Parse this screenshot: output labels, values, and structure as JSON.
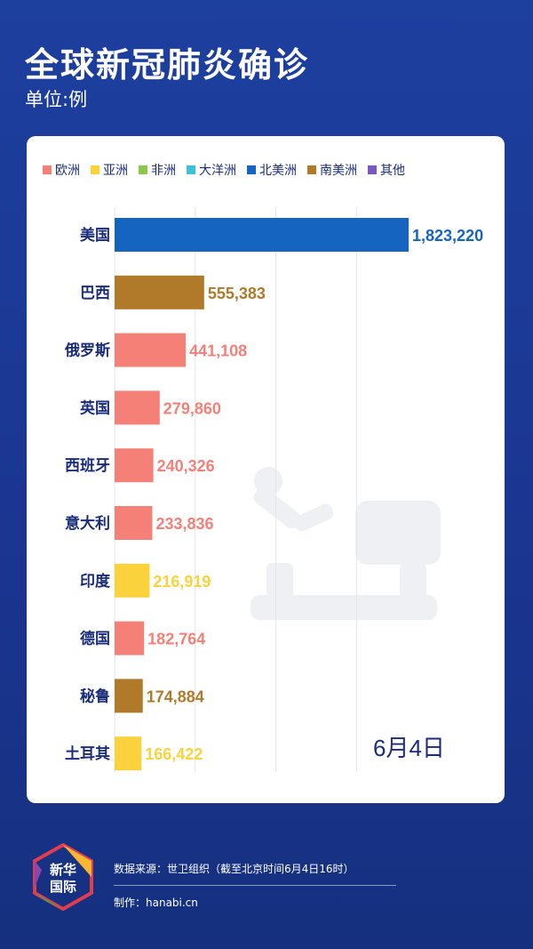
{
  "header": {
    "title": "全球新冠肺炎确诊",
    "unit": "单位:例"
  },
  "legend": [
    {
      "label": "欧洲",
      "color": "#f58078"
    },
    {
      "label": "亚洲",
      "color": "#f9d23c"
    },
    {
      "label": "非洲",
      "color": "#8cc64a"
    },
    {
      "label": "大洋洲",
      "color": "#3ec1d8"
    },
    {
      "label": "北美洲",
      "color": "#1565c0"
    },
    {
      "label": "南美洲",
      "color": "#b07a2a"
    },
    {
      "label": "其他",
      "color": "#7e57c2"
    }
  ],
  "chart_data": {
    "type": "bar",
    "orientation": "horizontal",
    "categories": [
      "美国",
      "巴西",
      "俄罗斯",
      "英国",
      "西班牙",
      "意大利",
      "印度",
      "德国",
      "秘鲁",
      "土耳其"
    ],
    "values": [
      1823220,
      555383,
      441108,
      279860,
      240326,
      233836,
      216919,
      182764,
      174884,
      166422
    ],
    "value_labels": [
      "1,823,220",
      "555,383",
      "441,108",
      "279,860",
      "240,326",
      "233,836",
      "216,919",
      "182,764",
      "174,884",
      "166,422"
    ],
    "regions": [
      "北美洲",
      "南美洲",
      "欧洲",
      "欧洲",
      "欧洲",
      "欧洲",
      "亚洲",
      "欧洲",
      "南美洲",
      "亚洲"
    ],
    "grid": true,
    "legend_position": "top"
  },
  "date_label": "6月4日",
  "footer": {
    "logo_line1": "新华",
    "logo_line2": "国际",
    "source": "数据来源：世卫组织（截至北京时间6月4日16时）",
    "maker": "制作：hanabi.cn"
  }
}
